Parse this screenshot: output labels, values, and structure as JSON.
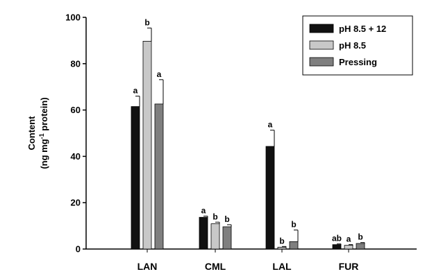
{
  "chart_data": {
    "type": "bar",
    "ylabel_line1": "Content",
    "ylabel_line2_pre": "(ng mg",
    "ylabel_line2_sup": "-1",
    "ylabel_line2_post": " protein)",
    "ylim": [
      0,
      100
    ],
    "yticks": [
      0,
      20,
      40,
      60,
      80,
      100
    ],
    "categories": [
      "LAN",
      "CML",
      "LAL",
      "FUR"
    ],
    "legend_position": "top-right",
    "series": [
      {
        "name": "pH 8.5 + 12",
        "color": "#111111",
        "values": [
          61.5,
          13.7,
          44.3,
          1.9
        ],
        "errors": [
          4.5,
          0.5,
          7.0,
          0.3
        ],
        "letters": [
          "a",
          "a",
          "a",
          "ab"
        ]
      },
      {
        "name": "pH 8.5",
        "color": "#c8c8c8",
        "values": [
          89.7,
          10.9,
          0.8,
          1.6
        ],
        "errors": [
          5.7,
          0.7,
          0.3,
          0.3
        ],
        "letters": [
          "b",
          "b",
          "b",
          "a"
        ]
      },
      {
        "name": "Pressing",
        "color": "#7f7f7f",
        "values": [
          62.6,
          9.6,
          3.2,
          2.4
        ],
        "errors": [
          10.5,
          0.9,
          5.0,
          0.4
        ],
        "letters": [
          "a",
          "b",
          "b",
          "b"
        ]
      }
    ]
  }
}
